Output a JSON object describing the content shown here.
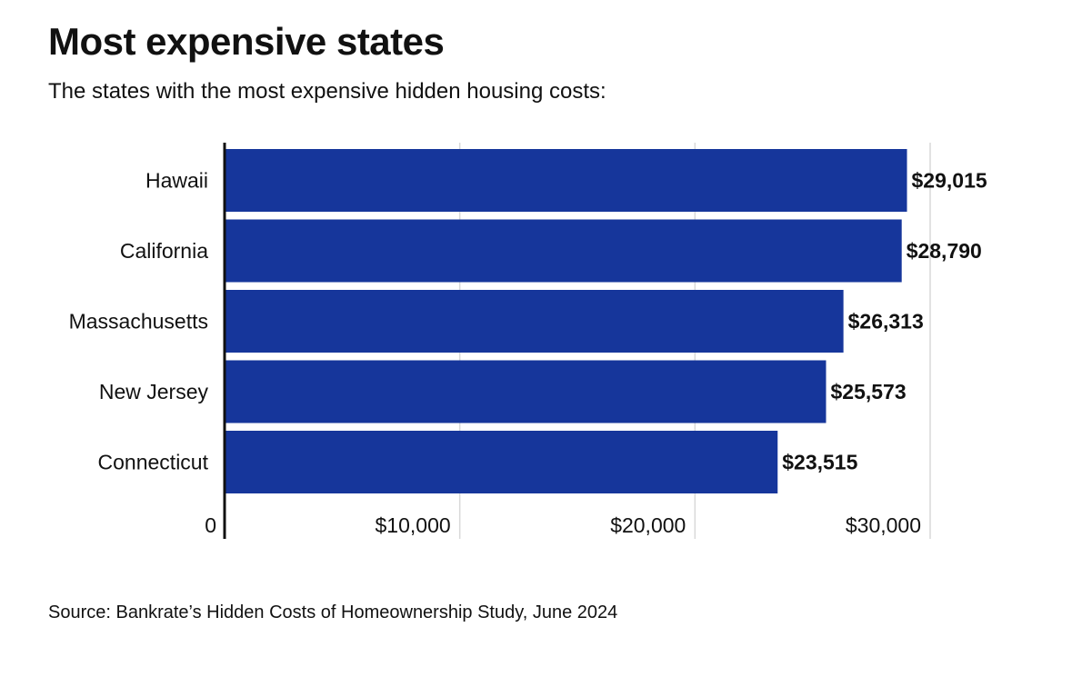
{
  "header": {
    "title": "Most expensive states",
    "subtitle": "The states with the most expensive hidden housing costs:"
  },
  "footer": {
    "source": "Source: Bankrate’s Hidden Costs of Homeownership Study, June 2024"
  },
  "chart_data": {
    "type": "bar",
    "orientation": "horizontal",
    "categories": [
      "Hawaii",
      "California",
      "Massachusetts",
      "New Jersey",
      "Connecticut"
    ],
    "values": [
      29015,
      28790,
      26313,
      25573,
      23515
    ],
    "value_labels": [
      "$29,015",
      "$28,790",
      "$26,313",
      "$25,573",
      "$23,515"
    ],
    "xlim": [
      0,
      30000
    ],
    "x_ticks": [
      0,
      10000,
      20000,
      30000
    ],
    "x_tick_labels": [
      "0",
      "$10,000",
      "$20,000",
      "$30,000"
    ],
    "grid": true,
    "bar_color": "#16369b"
  }
}
